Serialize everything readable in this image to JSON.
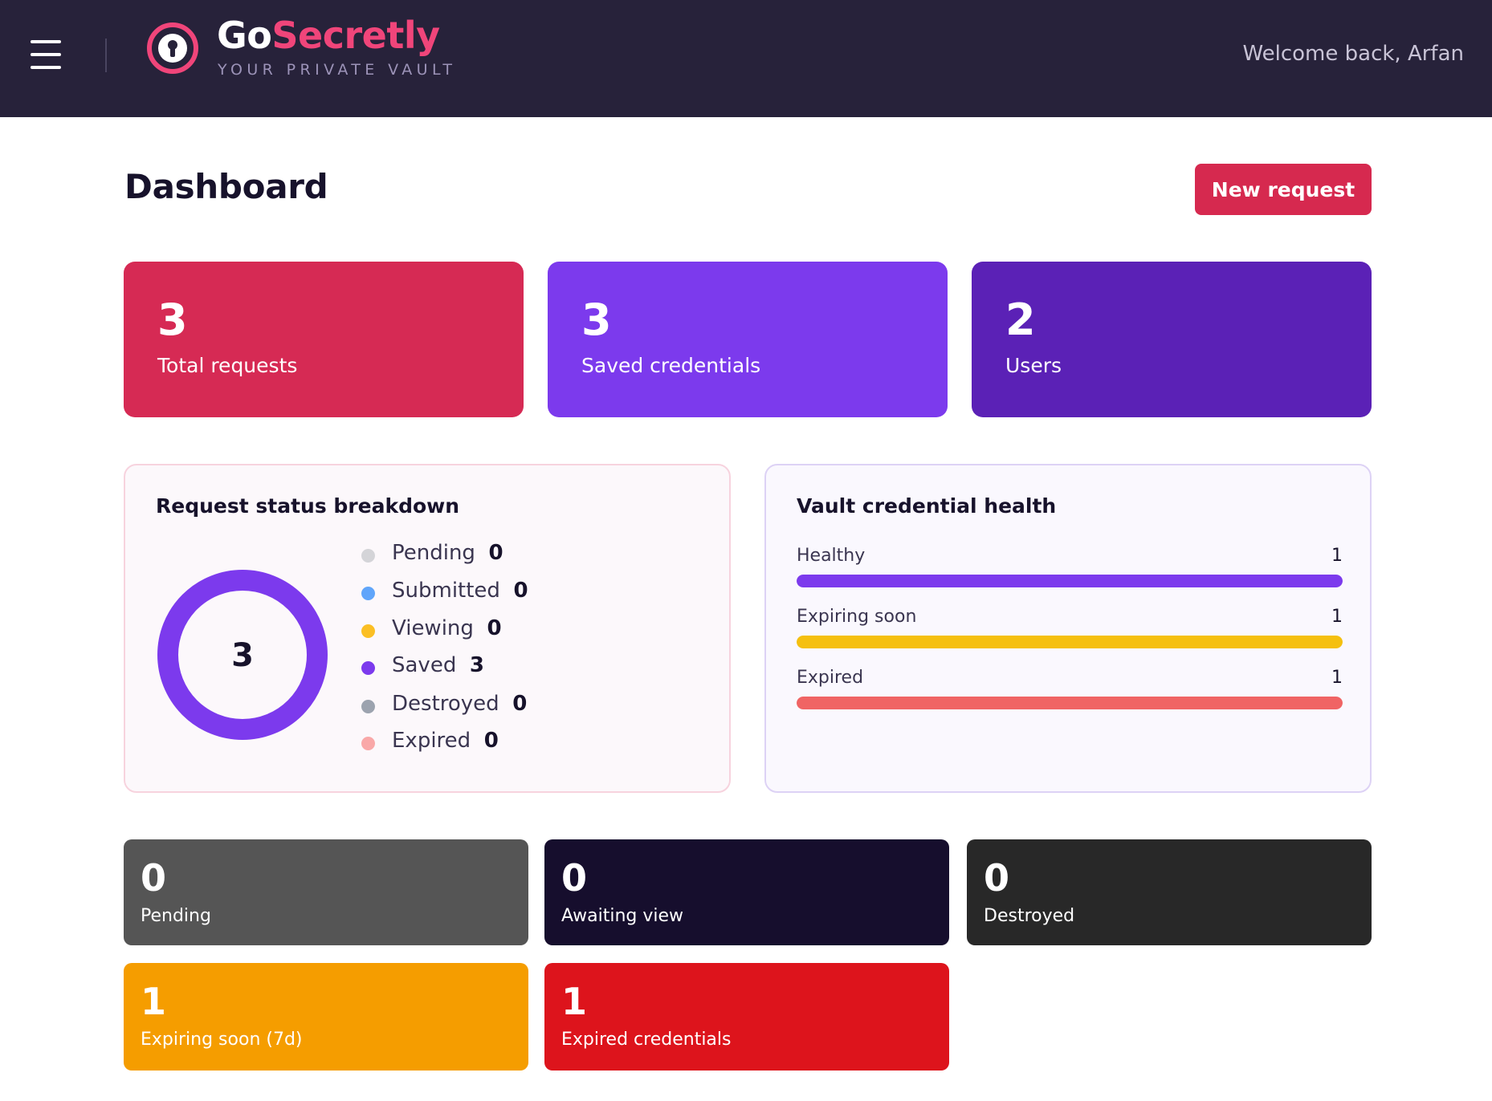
{
  "header": {
    "brand_go": "Go",
    "brand_secretly": "Secretly",
    "tagline": "YOUR PRIVATE VAULT",
    "welcome": "Welcome back, Arfan"
  },
  "page": {
    "title": "Dashboard",
    "new_request_label": "New request"
  },
  "stats": [
    {
      "value": "3",
      "label": "Total requests",
      "color": "#d62a54"
    },
    {
      "value": "3",
      "label": "Saved credentials",
      "color": "#7c3aed"
    },
    {
      "value": "2",
      "label": "Users",
      "color": "#5b21b6"
    }
  ],
  "status_breakdown": {
    "title": "Request status breakdown",
    "total": "3",
    "ring_color": "#7c3aed",
    "items": [
      {
        "name": "Pending",
        "value": "0",
        "color": "#d4d4d8"
      },
      {
        "name": "Submitted",
        "value": "0",
        "color": "#60a5fa"
      },
      {
        "name": "Viewing",
        "value": "0",
        "color": "#fbbf24"
      },
      {
        "name": "Saved",
        "value": "3",
        "color": "#7c3aed"
      },
      {
        "name": "Destroyed",
        "value": "0",
        "color": "#9ca3af"
      },
      {
        "name": "Expired",
        "value": "0",
        "color": "#f9a8a8"
      }
    ]
  },
  "credential_health": {
    "title": "Vault credential health",
    "rows": [
      {
        "label": "Healthy",
        "value": "1",
        "fill_fraction": 1.0,
        "color": "#7c3aed"
      },
      {
        "label": "Expiring soon",
        "value": "1",
        "fill_fraction": 1.0,
        "color": "#f5c00f"
      },
      {
        "label": "Expired",
        "value": "1",
        "fill_fraction": 1.0,
        "color": "#f06464"
      }
    ]
  },
  "mini_cards": [
    {
      "value": "0",
      "label": "Pending",
      "color": "#555555"
    },
    {
      "value": "0",
      "label": "Awaiting view",
      "color": "#160e2d"
    },
    {
      "value": "0",
      "label": "Destroyed",
      "color": "#282828"
    },
    {
      "value": "1",
      "label": "Expiring soon (7d)",
      "color": "#f59d00"
    },
    {
      "value": "1",
      "label": "Expired credentials",
      "color": "#dd141c"
    }
  ]
}
